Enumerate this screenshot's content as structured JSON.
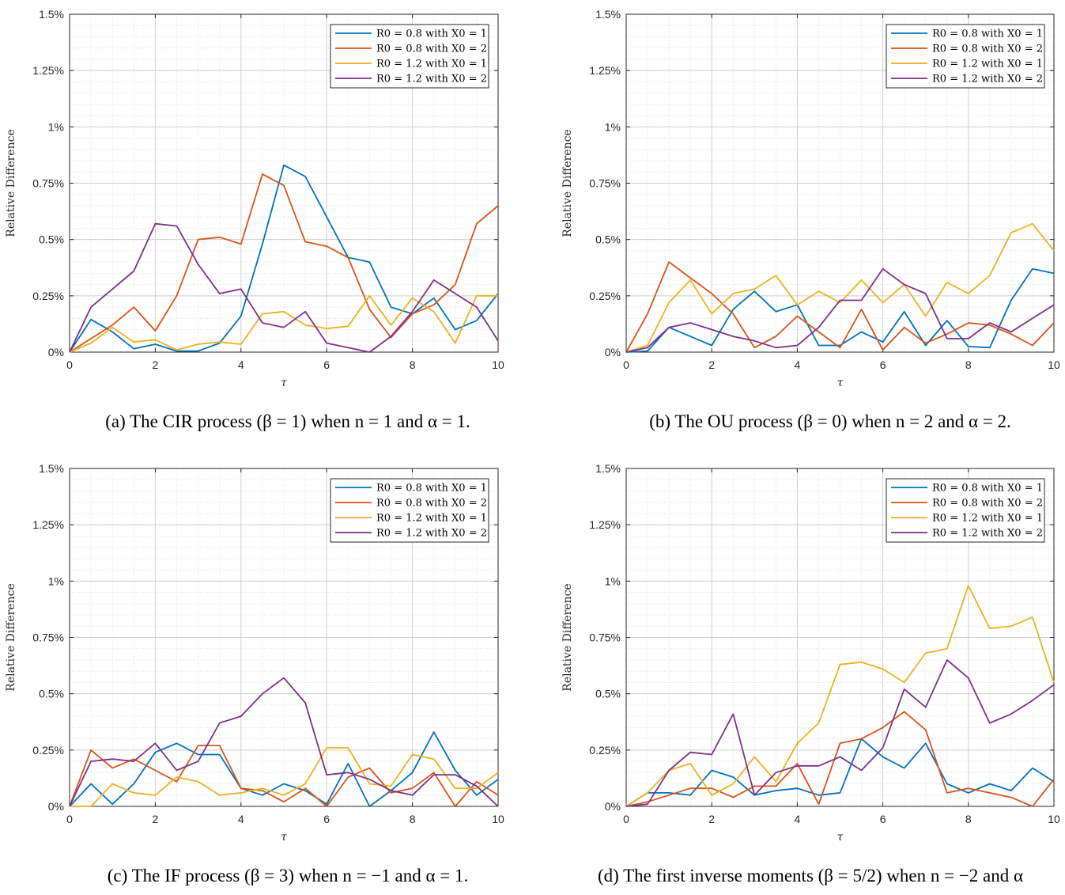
{
  "colors": {
    "s1": "#0072BD",
    "s2": "#D95319",
    "s3": "#EDB120",
    "s4": "#7E2F8E",
    "grid": "#dcdcdc",
    "axis": "#262626"
  },
  "chart_data": [
    {
      "type": "line",
      "caption": "(a) The CIR process (β = 1) when n = 1 and α = 1.",
      "xlabel": "τ",
      "ylabel": "Relative Difference",
      "xlim": [
        0,
        10
      ],
      "ylim": [
        0,
        0.015
      ],
      "xticks": [
        "0",
        "2",
        "4",
        "6",
        "8",
        "10"
      ],
      "yticks": [
        "0%",
        "0.25%",
        "0.5%",
        "0.75%",
        "1%",
        "1.25%",
        "1.5%"
      ],
      "grid": true,
      "legend_position": "top-right",
      "x": [
        0,
        0.5,
        1,
        1.5,
        2,
        2.5,
        3,
        3.5,
        4,
        4.5,
        5,
        5.5,
        6,
        6.5,
        7,
        7.5,
        8,
        8.5,
        9,
        9.5,
        10
      ],
      "series": [
        {
          "name": "R0 = 0.8 with X0 = 1",
          "values": [
            0,
            0.00145,
            0.0009,
            0.00015,
            0.00035,
            5e-05,
            5e-05,
            0.0004,
            0.0016,
            0.0048,
            0.0083,
            0.0078,
            0.006,
            0.0042,
            0.004,
            0.002,
            0.0017,
            0.0024,
            0.001,
            0.0014,
            0.0026
          ]
        },
        {
          "name": "R0 = 0.8 with X0 = 2",
          "values": [
            0,
            0.0006,
            0.0012,
            0.002,
            0.00095,
            0.0025,
            0.005,
            0.0051,
            0.0048,
            0.0079,
            0.0074,
            0.0049,
            0.0047,
            0.0042,
            0.0019,
            0.00065,
            0.0017,
            0.0021,
            0.003,
            0.0057,
            0.0065
          ]
        },
        {
          "name": "R0 = 1.2 with X0 = 1",
          "values": [
            0,
            0.0004,
            0.0011,
            0.00045,
            0.00055,
            0.0001,
            0.00035,
            0.00045,
            0.00035,
            0.0017,
            0.0018,
            0.0012,
            0.00105,
            0.00115,
            0.0025,
            0.0012,
            0.0024,
            0.0018,
            0.0004,
            0.0025,
            0.0025
          ]
        },
        {
          "name": "R0 = 1.2 with X0 = 2",
          "values": [
            0,
            0.002,
            0.0028,
            0.0036,
            0.0057,
            0.0056,
            0.0039,
            0.0026,
            0.0028,
            0.0013,
            0.0011,
            0.0018,
            0.0004,
            0.0002,
            0.0,
            0.0007,
            0.0018,
            0.0032,
            0.0026,
            0.002,
            0.0005
          ]
        }
      ]
    },
    {
      "type": "line",
      "caption": "(b) The OU process (β = 0) when n = 2 and α = 2.",
      "xlabel": "τ",
      "ylabel": "Relative Difference",
      "xlim": [
        0,
        10
      ],
      "ylim": [
        0,
        0.015
      ],
      "xticks": [
        "0",
        "2",
        "4",
        "6",
        "8",
        "10"
      ],
      "yticks": [
        "0%",
        "0.25%",
        "0.5%",
        "0.75%",
        "1%",
        "1.25%",
        "1.5%"
      ],
      "grid": true,
      "legend_position": "top-right",
      "x": [
        0,
        0.5,
        1,
        1.5,
        2,
        2.5,
        3,
        3.5,
        4,
        4.5,
        5,
        5.5,
        6,
        6.5,
        7,
        7.5,
        8,
        8.5,
        9,
        9.5,
        10
      ],
      "series": [
        {
          "name": "R0 = 0.8 with X0 = 1",
          "values": [
            0,
            5e-05,
            0.0011,
            0.0007,
            0.0003,
            0.0019,
            0.0027,
            0.0018,
            0.0021,
            0.0003,
            0.0003,
            0.0009,
            0.00045,
            0.0018,
            0.0003,
            0.0014,
            0.00025,
            0.0002,
            0.0023,
            0.0037,
            0.0035
          ]
        },
        {
          "name": "R0 = 0.8 with X0 = 2",
          "values": [
            0,
            0.0017,
            0.004,
            0.0033,
            0.0026,
            0.0017,
            0.0002,
            0.0007,
            0.0016,
            0.0009,
            0.0002,
            0.0019,
            0.0001,
            0.0011,
            0.0004,
            0.0008,
            0.0013,
            0.0012,
            0.0008,
            0.0003,
            0.0013
          ]
        },
        {
          "name": "R0 = 1.2 with X0 = 1",
          "values": [
            0,
            0.0003,
            0.0022,
            0.0032,
            0.0017,
            0.0026,
            0.0028,
            0.0034,
            0.0021,
            0.0027,
            0.0022,
            0.0032,
            0.0022,
            0.003,
            0.0016,
            0.0031,
            0.0026,
            0.0034,
            0.0053,
            0.0057,
            0.0045
          ]
        },
        {
          "name": "R0 = 1.2 with X0 = 2",
          "values": [
            0,
            0.0002,
            0.0011,
            0.0013,
            0.001,
            0.0007,
            0.0005,
            0.0002,
            0.0003,
            0.0011,
            0.0023,
            0.0023,
            0.0037,
            0.003,
            0.0026,
            0.0006,
            0.0006,
            0.0013,
            0.0009,
            0.0015,
            0.0021
          ]
        }
      ]
    },
    {
      "type": "line",
      "caption": "(c) The IF process (β = 3) when n = −1 and α = 1.",
      "xlabel": "τ",
      "ylabel": "Relative Difference",
      "xlim": [
        0,
        10
      ],
      "ylim": [
        0,
        0.015
      ],
      "xticks": [
        "0",
        "2",
        "4",
        "6",
        "8",
        "10"
      ],
      "yticks": [
        "0%",
        "0.25%",
        "0.5%",
        "0.75%",
        "1%",
        "1.25%",
        "1.5%"
      ],
      "grid": true,
      "legend_position": "top-right",
      "x": [
        0,
        0.5,
        1,
        1.5,
        2,
        2.5,
        3,
        3.5,
        4,
        4.5,
        5,
        5.5,
        6,
        6.5,
        7,
        7.5,
        8,
        8.5,
        9,
        9.5,
        10
      ],
      "series": [
        {
          "name": "R0 = 0.8 with X0 = 1",
          "values": [
            0,
            0.001,
            0.0001,
            0.001,
            0.0024,
            0.0028,
            0.0023,
            0.0023,
            0.0008,
            0.0005,
            0.001,
            0.0007,
            0.0001,
            0.0019,
            0.0,
            0.0007,
            0.0015,
            0.0033,
            0.0016,
            0.0005,
            0.0012
          ]
        },
        {
          "name": "R0 = 0.8 with X0 = 2",
          "values": [
            0,
            0.0025,
            0.0017,
            0.0021,
            0.0016,
            0.0011,
            0.0027,
            0.0027,
            0.0008,
            0.0007,
            0.0002,
            0.0008,
            0.0,
            0.0013,
            0.0017,
            0.0006,
            0.0008,
            0.0015,
            0.0,
            0.0011,
            0.0005
          ]
        },
        {
          "name": "R0 = 1.2 with X0 = 1",
          "values": [
            0,
            0.0,
            0.001,
            0.0006,
            0.0005,
            0.0013,
            0.0011,
            0.0005,
            0.0006,
            0.0008,
            0.0005,
            0.001,
            0.0026,
            0.0026,
            0.001,
            0.0009,
            0.0023,
            0.0021,
            0.0008,
            0.0008,
            0.0015
          ]
        },
        {
          "name": "R0 = 1.2 with X0 = 2",
          "values": [
            0,
            0.002,
            0.0021,
            0.002,
            0.0028,
            0.0016,
            0.002,
            0.0037,
            0.004,
            0.005,
            0.0057,
            0.0046,
            0.0014,
            0.0015,
            0.0012,
            0.0007,
            0.0005,
            0.0014,
            0.0014,
            0.0009,
            0.0
          ]
        }
      ]
    },
    {
      "type": "line",
      "caption": "(d) The first inverse moments (β = 5/2) when n = −2 and α",
      "xlabel": "τ",
      "ylabel": "Relative Difference",
      "xlim": [
        0,
        10
      ],
      "ylim": [
        0,
        0.015
      ],
      "xticks": [
        "0",
        "2",
        "4",
        "6",
        "8",
        "10"
      ],
      "yticks": [
        "0%",
        "0.25%",
        "0.5%",
        "0.75%",
        "1%",
        "1.25%",
        "1.5%"
      ],
      "grid": true,
      "legend_position": "top-right",
      "x": [
        0,
        0.5,
        1,
        1.5,
        2,
        2.5,
        3,
        3.5,
        4,
        4.5,
        5,
        5.5,
        6,
        6.5,
        7,
        7.5,
        8,
        8.5,
        9,
        9.5,
        10
      ],
      "series": [
        {
          "name": "R0 = 0.8 with X0 = 1",
          "values": [
            0,
            0.0006,
            0.0006,
            0.0005,
            0.0016,
            0.0013,
            0.0005,
            0.0007,
            0.0008,
            0.0005,
            0.0006,
            0.003,
            0.0022,
            0.0017,
            0.0028,
            0.001,
            0.0006,
            0.001,
            0.0007,
            0.0017,
            0.0011
          ]
        },
        {
          "name": "R0 = 0.8 with X0 = 2",
          "values": [
            0,
            0.0002,
            0.0005,
            0.0008,
            0.0008,
            0.0004,
            0.0009,
            0.0009,
            0.0019,
            0.0001,
            0.0028,
            0.003,
            0.0035,
            0.0042,
            0.0034,
            0.0006,
            0.0008,
            0.0006,
            0.0004,
            0.0,
            0.0012
          ]
        },
        {
          "name": "R0 = 1.2 with X0 = 1",
          "values": [
            0,
            0.0006,
            0.0016,
            0.0019,
            0.0005,
            0.001,
            0.0022,
            0.0011,
            0.0028,
            0.0037,
            0.0063,
            0.0064,
            0.0061,
            0.0055,
            0.0068,
            0.007,
            0.0098,
            0.0079,
            0.008,
            0.0084,
            0.0055
          ]
        },
        {
          "name": "R0 = 1.2 with X0 = 2",
          "values": [
            0,
            0.0001,
            0.0016,
            0.0024,
            0.0023,
            0.0041,
            0.0005,
            0.0015,
            0.0018,
            0.0018,
            0.0022,
            0.0016,
            0.0026,
            0.0052,
            0.0044,
            0.0065,
            0.0057,
            0.0037,
            0.0041,
            0.0047,
            0.0054
          ]
        }
      ]
    }
  ]
}
